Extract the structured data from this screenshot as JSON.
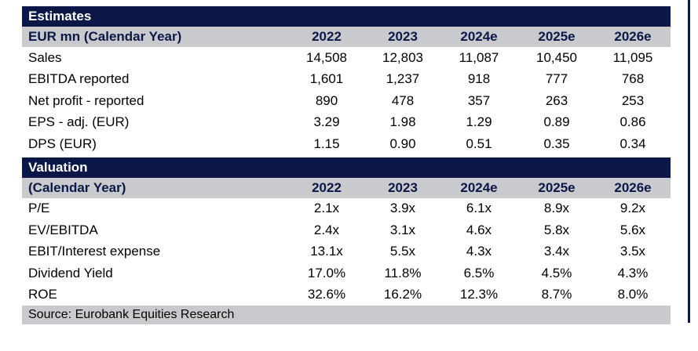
{
  "estimates": {
    "band_title": "Estimates",
    "header": {
      "label": "EUR mn (Calendar Year)",
      "years": [
        "2022",
        "2023",
        "2024e",
        "2025e",
        "2026e"
      ]
    },
    "rows": [
      {
        "label": "Sales",
        "values": [
          "14,508",
          "12,803",
          "11,087",
          "10,450",
          "11,095"
        ]
      },
      {
        "label": "EBITDA reported",
        "values": [
          "1,601",
          "1,237",
          "918",
          "777",
          "768"
        ]
      },
      {
        "label": "Net profit - reported",
        "values": [
          "890",
          "478",
          "357",
          "263",
          "253"
        ]
      },
      {
        "label": "EPS - adj. (EUR)",
        "values": [
          "3.29",
          "1.98",
          "1.29",
          "0.89",
          "0.86"
        ]
      },
      {
        "label": "DPS (EUR)",
        "values": [
          "1.15",
          "0.90",
          "0.51",
          "0.35",
          "0.34"
        ]
      }
    ]
  },
  "valuation": {
    "band_title": "Valuation",
    "header": {
      "label": "(Calendar Year)",
      "years": [
        "2022",
        "2023",
        "2024e",
        "2025e",
        "2026e"
      ]
    },
    "rows": [
      {
        "label": "P/E",
        "values": [
          "2.1x",
          "3.9x",
          "6.1x",
          "8.9x",
          "9.2x"
        ]
      },
      {
        "label": "EV/EBITDA",
        "values": [
          "2.4x",
          "3.1x",
          "4.6x",
          "5.8x",
          "5.6x"
        ]
      },
      {
        "label": "EBIT/Interest expense",
        "values": [
          "13.1x",
          "5.5x",
          "4.3x",
          "3.4x",
          "3.5x"
        ]
      },
      {
        "label": "Dividend Yield",
        "values": [
          "17.0%",
          "11.8%",
          "6.5%",
          "4.5%",
          "4.3%"
        ]
      },
      {
        "label": "ROE",
        "values": [
          "32.6%",
          "16.2%",
          "12.3%",
          "8.7%",
          "8.0%"
        ]
      }
    ]
  },
  "source": "Source: Eurobank Equities Research",
  "colors": {
    "band": "#0b1746",
    "header_bg": "#c9cacd",
    "header_text": "#0b1746"
  }
}
